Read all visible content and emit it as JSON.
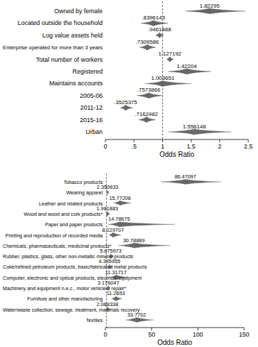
{
  "chart_data": [
    {
      "type": "forest",
      "orientation": "horizontal",
      "x_label": "Odds Ratio",
      "xlim": [
        0,
        2.5
      ],
      "xticks": [
        0,
        {
          "value": 0.5,
          "label": ".5"
        },
        1,
        1.5,
        2,
        2.5
      ],
      "reference_line": 1,
      "color": "#4d4d4d",
      "data_labels": true,
      "categories": [
        "Owned by female",
        "Located outside the household",
        "Log value assets held",
        "Enterprise operated for more than 3 years",
        "Total number of workers",
        "Registered",
        "Maintains accounts",
        "2005-06",
        "2011-12",
        "2015-16",
        "Urban"
      ],
      "values": [
        1.82295,
        0.8396143,
        0.9461888,
        0.7309586,
        1.127192,
        1.42204,
        1.003651,
        0.7573866,
        0.3525375,
        0.7162482,
        1.556148
      ],
      "value_labels": [
        "1.82295",
        ".8396143",
        ".9461888",
        ".7309586",
        "1.127192",
        "1.42204",
        "1.003651",
        ".7573866",
        ".3525375",
        ".7162482",
        "1.556148"
      ],
      "ci_low": [
        1.4,
        0.62,
        0.88,
        0.6,
        1.07,
        1.1,
        0.7,
        0.55,
        0.26,
        0.58,
        1.1
      ],
      "ci_high": [
        2.45,
        1.1,
        1.02,
        0.88,
        1.19,
        1.85,
        1.5,
        1.0,
        0.48,
        0.88,
        2.2
      ]
    },
    {
      "type": "forest",
      "orientation": "horizontal",
      "x_label": "Odds Ratio",
      "xlim": [
        0,
        150
      ],
      "xticks": [
        0,
        50,
        100,
        150
      ],
      "reference_line": 1,
      "color": "#4d4d4d",
      "data_labels": true,
      "categories": [
        "Tobacco products",
        "Wearing apparel",
        "Leather and related products",
        "Wood and wood and cork products*",
        "Paper and paper products",
        "Printing and reproduction of recorded media",
        "Chemicals, pharmaceuticals, medicinal products*",
        "Rubber, plastics, glass, other non-metallic mineral products",
        "Coke/refined petroleum products, basic/fabricated metal products",
        "Computer, electronic and optical products, electrical equipment",
        "Machinery and equipment n.e.c., motor vehicles, repair*",
        "Furniture and other manufacturing",
        "Water/waste collection, sewage, treatment, materials recovery",
        "Textiles"
      ],
      "values": [
        86.47097,
        2.350633,
        15.77206,
        1.981883,
        14.78675,
        8.229707,
        30.78889,
        5.675973,
        4.395955,
        11.31717,
        3.176047,
        11.2653,
        2.088338,
        33.7702
      ],
      "value_labels": [
        "86.47097",
        "2.350633",
        "15.77206",
        "1.981883",
        "14.78675",
        "8.229707",
        "30.78889",
        "5.675973",
        "4.395955",
        "11.31717",
        "3.176047",
        "11.2653",
        "2.088338",
        "33.7702"
      ],
      "ci_low": [
        60,
        1.5,
        9,
        0.8,
        3,
        4,
        14,
        3.5,
        2.8,
        5,
        1.8,
        7,
        0.8,
        22
      ],
      "ci_high": [
        125,
        3.6,
        28,
        4.8,
        75,
        17,
        70,
        9,
        7,
        25,
        5.5,
        18,
        5.5,
        52
      ]
    }
  ]
}
